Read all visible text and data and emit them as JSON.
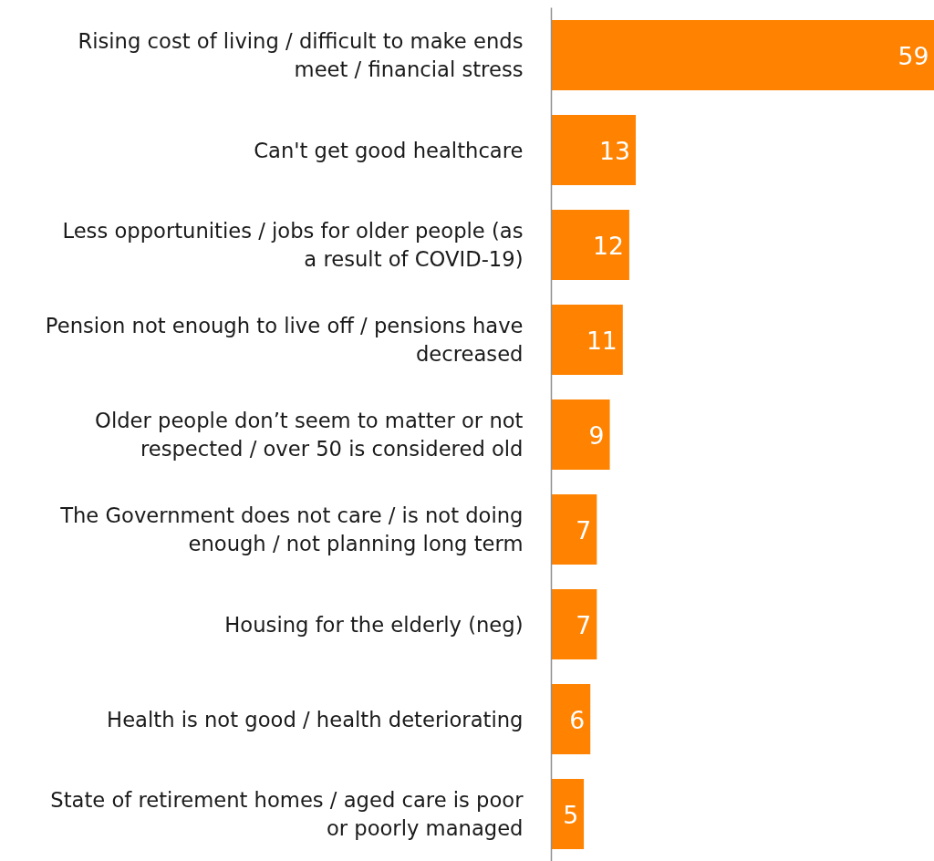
{
  "chart_data": {
    "type": "bar",
    "orientation": "horizontal",
    "data_labels": true,
    "color": "#ff8200",
    "categories": [
      "Rising cost of living / difficult to make ends meet / financial stress",
      "Can't get good healthcare",
      "Less opportunities / jobs for older people (as a result of COVID-19)",
      "Pension not enough to live off / pensions have decreased",
      "Older people don’t seem to matter or not respected / over 50 is considered old",
      "The Government does not care / is not doing enough / not planning long term",
      "Housing for the elderly (neg)",
      "Health is not good / health deteriorating",
      "State of retirement homes / aged care is poor or poorly managed"
    ],
    "values": [
      59,
      13,
      12,
      11,
      9,
      7,
      7,
      6,
      5
    ],
    "xlim": [
      0,
      59
    ]
  }
}
